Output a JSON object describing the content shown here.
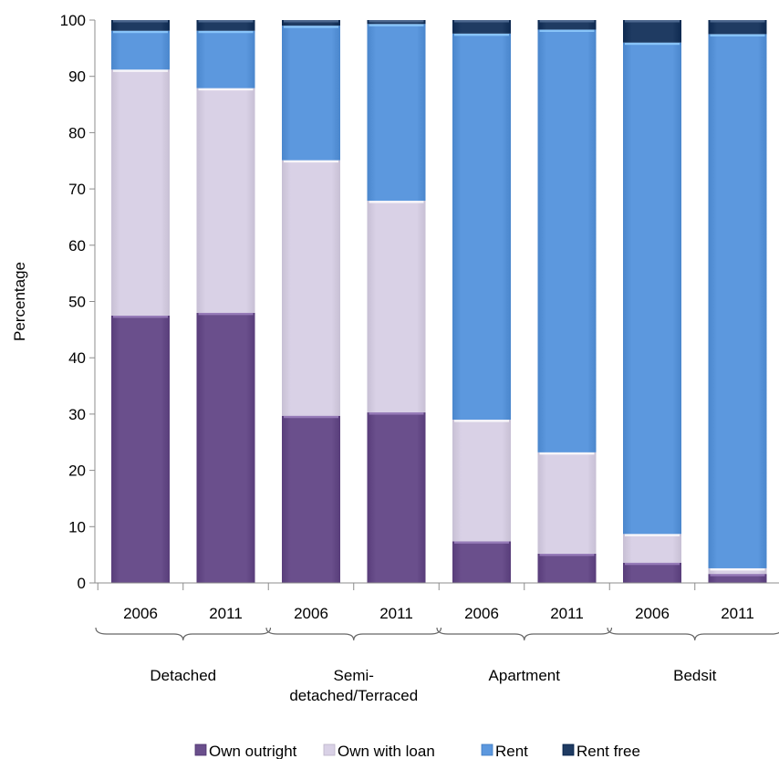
{
  "colors": {
    "own_outright": "#6a4f8c",
    "own_with_loan": "#d9d1e6",
    "rent": "#5c98de",
    "rent_free": "#1f3b62",
    "axis": "#8c8c8c",
    "brace": "#666666"
  },
  "chart_data": {
    "type": "bar",
    "stacked": true,
    "ylabel": "Percentage",
    "ylim": [
      0,
      100
    ],
    "yticks": [
      0,
      10,
      20,
      30,
      40,
      50,
      60,
      70,
      80,
      90,
      100
    ],
    "grid": false,
    "legend_position": "bottom",
    "categories": [
      "2006",
      "2011",
      "2006",
      "2011",
      "2006",
      "2011",
      "2006",
      "2011"
    ],
    "groups": [
      {
        "label": "Detached",
        "bars": [
          0,
          1
        ]
      },
      {
        "label": "Semi-detached/Terraced",
        "label_lines": [
          "Semi-",
          "detached/Terraced"
        ],
        "bars": [
          2,
          3
        ]
      },
      {
        "label": "Apartment",
        "bars": [
          4,
          5
        ]
      },
      {
        "label": "Bedsit",
        "bars": [
          6,
          7
        ]
      }
    ],
    "series": [
      {
        "name": "Own outright",
        "color_key": "own_outright",
        "values": [
          47.5,
          48,
          29.7,
          30.3,
          7.4,
          5.2,
          3.6,
          1.6
        ]
      },
      {
        "name": "Own with loan",
        "color_key": "own_with_loan",
        "values": [
          43.7,
          39.9,
          45.4,
          37.6,
          21.6,
          18,
          5.1,
          1
        ]
      },
      {
        "name": "Rent",
        "color_key": "rent",
        "values": [
          6.9,
          10.2,
          23.9,
          31.4,
          68.6,
          75.1,
          87.3,
          94.9
        ]
      },
      {
        "name": "Rent free",
        "color_key": "rent_free",
        "values": [
          1.9,
          1.9,
          1,
          0.7,
          2.4,
          1.7,
          4,
          2.5
        ]
      }
    ]
  }
}
